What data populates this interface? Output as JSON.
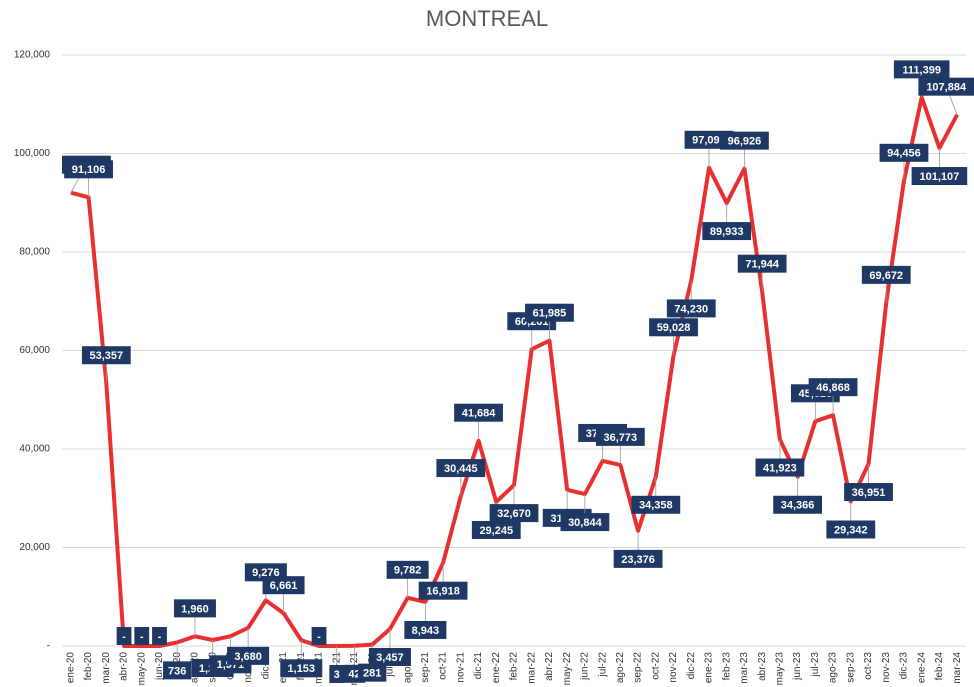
{
  "chart_data": {
    "type": "line",
    "title": "MONTREAL",
    "categories": [
      "ene-20",
      "feb-20",
      "mar-20",
      "abr-20",
      "may-20",
      "jun-20",
      "jul-20",
      "ago-20",
      "sep-20",
      "oct-20",
      "nov-20",
      "dic-20",
      "ene-21",
      "feb-21",
      "mar-21",
      "abr-21",
      "may-21",
      "jun-21",
      "jul-21",
      "ago-21",
      "sep-21",
      "oct-21",
      "nov-21",
      "dic-21",
      "ene-22",
      "feb-22",
      "mar-22",
      "abr-22",
      "may-22",
      "jun-22",
      "jul-22",
      "ago-22",
      "sep-22",
      "oct-22",
      "nov-22",
      "dic-22",
      "ene-23",
      "feb-23",
      "mar-23",
      "abr-23",
      "may-23",
      "jun-23",
      "jul-23",
      "ago-23",
      "sep-23",
      "oct-23",
      "nov-23",
      "dic-23",
      "ene-24",
      "feb-24",
      "mar-24"
    ],
    "values": [
      92042,
      91106,
      53357,
      0,
      0,
      0,
      736,
      1960,
      1217,
      1971,
      3680,
      9276,
      6661,
      1153,
      0,
      3,
      42,
      281,
      3457,
      9782,
      8943,
      16918,
      30445,
      41684,
      29245,
      32670,
      60261,
      61985,
      31703,
      30844,
      37573,
      36773,
      23376,
      34358,
      59028,
      74230,
      97099,
      89933,
      96926,
      71944,
      41923,
      34366,
      45628,
      46868,
      29342,
      36951,
      69672,
      94456,
      111399,
      101107,
      107884
    ],
    "value_labels": [
      "92,042",
      "91,106",
      "53,357",
      "-",
      "-",
      "-",
      "736",
      "1,960",
      "1,217",
      "1,971",
      "3,680",
      "9,276",
      "6,661",
      "1,153",
      "-",
      "3",
      "42",
      "281",
      "3,457",
      "9,782",
      "8,943",
      "16,918",
      "30,445",
      "41,684",
      "29,245",
      "32,670",
      "60,261",
      "61,985",
      "31,703",
      "30,844",
      "37,573",
      "36,773",
      "23,376",
      "34,358",
      "59,028",
      "74,230",
      "97,099",
      "89,933",
      "96,926",
      "71,944",
      "41,923",
      "34,366",
      "45,628",
      "46,868",
      "29,342",
      "36,951",
      "69,672",
      "94,456",
      "111,399",
      "101,107",
      "107,884"
    ],
    "color": "#e8302f",
    "label_color": "#1f3864",
    "ylim": [
      0,
      120000
    ],
    "yticks": [
      {
        "value": 0,
        "label": "-"
      },
      {
        "value": 20000,
        "label": "20,000"
      },
      {
        "value": 40000,
        "label": "40,000"
      },
      {
        "value": 60000,
        "label": "60,000"
      },
      {
        "value": 80000,
        "label": "80,000"
      },
      {
        "value": 100000,
        "label": "100,000"
      },
      {
        "value": 120000,
        "label": "120,000"
      }
    ],
    "grid": true
  }
}
